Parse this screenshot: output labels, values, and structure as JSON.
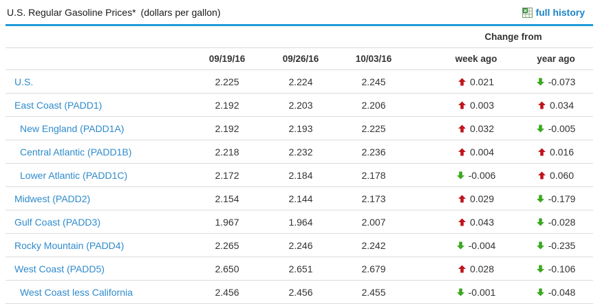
{
  "widget": {
    "title": "U.S. Regular Gasoline Prices*",
    "units": "(dollars per gallon)",
    "full_history": {
      "label": "full history",
      "icon": "spreadsheet-icon"
    }
  },
  "table": {
    "change_from_label": "Change from",
    "date_columns": [
      "09/19/16",
      "09/26/16",
      "10/03/16"
    ],
    "change_columns": [
      "week ago",
      "year ago"
    ],
    "rows": [
      {
        "label": "U.S.",
        "sub_region": false,
        "prices": [
          "2.225",
          "2.224",
          "2.245"
        ],
        "week_ago": {
          "direction": "up",
          "value": "0.021"
        },
        "year_ago": {
          "direction": "down",
          "value": "-0.073"
        }
      },
      {
        "label": "East Coast (PADD1)",
        "sub_region": false,
        "prices": [
          "2.192",
          "2.203",
          "2.206"
        ],
        "week_ago": {
          "direction": "up",
          "value": "0.003"
        },
        "year_ago": {
          "direction": "up",
          "value": "0.034"
        }
      },
      {
        "label": "New England (PADD1A)",
        "sub_region": true,
        "prices": [
          "2.192",
          "2.193",
          "2.225"
        ],
        "week_ago": {
          "direction": "up",
          "value": "0.032"
        },
        "year_ago": {
          "direction": "down",
          "value": "-0.005"
        }
      },
      {
        "label": "Central Atlantic (PADD1B)",
        "sub_region": true,
        "prices": [
          "2.218",
          "2.232",
          "2.236"
        ],
        "week_ago": {
          "direction": "up",
          "value": "0.004"
        },
        "year_ago": {
          "direction": "up",
          "value": "0.016"
        }
      },
      {
        "label": "Lower Atlantic (PADD1C)",
        "sub_region": true,
        "prices": [
          "2.172",
          "2.184",
          "2.178"
        ],
        "week_ago": {
          "direction": "down",
          "value": "-0.006"
        },
        "year_ago": {
          "direction": "up",
          "value": "0.060"
        }
      },
      {
        "label": "Midwest (PADD2)",
        "sub_region": false,
        "prices": [
          "2.154",
          "2.144",
          "2.173"
        ],
        "week_ago": {
          "direction": "up",
          "value": "0.029"
        },
        "year_ago": {
          "direction": "down",
          "value": "-0.179"
        }
      },
      {
        "label": "Gulf Coast (PADD3)",
        "sub_region": false,
        "prices": [
          "1.967",
          "1.964",
          "2.007"
        ],
        "week_ago": {
          "direction": "up",
          "value": "0.043"
        },
        "year_ago": {
          "direction": "down",
          "value": "-0.028"
        }
      },
      {
        "label": "Rocky Mountain (PADD4)",
        "sub_region": false,
        "prices": [
          "2.265",
          "2.246",
          "2.242"
        ],
        "week_ago": {
          "direction": "down",
          "value": "-0.004"
        },
        "year_ago": {
          "direction": "down",
          "value": "-0.235"
        }
      },
      {
        "label": "West Coast (PADD5)",
        "sub_region": false,
        "prices": [
          "2.650",
          "2.651",
          "2.679"
        ],
        "week_ago": {
          "direction": "up",
          "value": "0.028"
        },
        "year_ago": {
          "direction": "down",
          "value": "-0.106"
        }
      },
      {
        "label": "West Coast less California",
        "sub_region": true,
        "prices": [
          "2.456",
          "2.456",
          "2.455"
        ],
        "week_ago": {
          "direction": "down",
          "value": "-0.001"
        },
        "year_ago": {
          "direction": "down",
          "value": "-0.048"
        }
      }
    ]
  },
  "icons": {
    "up": "up-arrow-icon",
    "down": "down-arrow-icon"
  },
  "colors": {
    "accent_rule": "#1e9bd7",
    "link": "#2e8bcc",
    "history_link": "#1c84c6",
    "up_arrow": "#c0141b",
    "down_arrow": "#3aa81f"
  }
}
